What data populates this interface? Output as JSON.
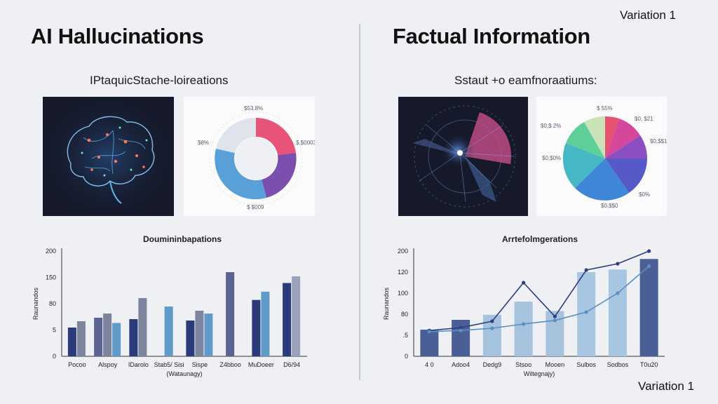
{
  "left": {
    "title": "AI  Hallucinations",
    "subtitle": "IPtaquicStache-loireations",
    "donut_labels": [
      "$53.8%",
      "$8%",
      "$.$0003",
      "$ $009"
    ],
    "chart_title": "Doumininbapations"
  },
  "right": {
    "title": "Factual Information",
    "subtitle": "Sstaut +o eamfnoraatiums:",
    "pie_labels": [
      "$ 55%",
      "$0,$ 2%",
      "$0, $21",
      "$0,$$1",
      "$0,$0%",
      "$0%",
      "$0,$$0"
    ],
    "chart_title": "Arrtefolmgerations"
  },
  "variation_top": "Variation 1",
  "variation_bottom": "Variation 1",
  "chart_data": [
    {
      "type": "bar",
      "title": "Doumininbapations",
      "ylabel": "Raunandos",
      "xlabel": "(Wataunagy)",
      "yticks": [
        "0",
        "5",
        "80",
        "150",
        "200"
      ],
      "ytick_positions": [
        0,
        5,
        80,
        150,
        200
      ],
      "categories": [
        "Pocoo",
        "Alspoy",
        "IDarolo",
        "Stab5/ Sisi",
        "Sispe",
        "Z4bboo",
        "MuDoeer",
        "D6/94"
      ],
      "series": [
        {
          "color": "#2b3a7a",
          "values": [
            12,
            0,
            36,
            0,
            32,
            0,
            90,
            135
          ]
        },
        {
          "color": "#5a6391",
          "values": [
            0,
            40,
            0,
            0,
            0,
            160,
            0,
            0
          ]
        },
        {
          "color": "#7d859e",
          "values": [
            30,
            52,
            95,
            0,
            60,
            0,
            0,
            0
          ]
        },
        {
          "color": "#5f9ac8",
          "values": [
            0,
            25,
            0,
            72,
            52,
            0,
            112,
            0
          ]
        },
        {
          "color": "#9aa1b8",
          "values": [
            0,
            0,
            0,
            0,
            0,
            0,
            0,
            152
          ]
        }
      ],
      "ylim": [
        0,
        220
      ]
    },
    {
      "type": "bar",
      "title": "Arrtefolmgerations",
      "ylabel": "Raunandos",
      "xlabel": "Wiltegnajy)",
      "yticks": [
        "0",
        ".5",
        "80",
        "100",
        "120",
        "200"
      ],
      "ytick_positions": [
        0,
        5,
        80,
        100,
        120,
        200
      ],
      "categories": [
        "4 0",
        "Adoo4",
        "Dedg9",
        "Stsoo",
        "Mooen",
        "Sulbos",
        "Sodbos",
        "T0u20"
      ],
      "bar_values": [
        25,
        60,
        78,
        92,
        83,
        120,
        130,
        170
      ],
      "bar_colors": [
        "#4a5f96",
        "#4a5f96",
        "#a5c3df",
        "#a7c2dc",
        "#a7c2dc",
        "#a7c6e2",
        "#a7c6e2",
        "#4a5f96"
      ],
      "lines": [
        {
          "color": "#2e3f7e",
          "values": [
            22,
            32,
            55,
            110,
            72,
            128,
            152,
            200
          ]
        },
        {
          "color": "#5a8fc1",
          "values": [
            18,
            22,
            30,
            45,
            58,
            82,
            100,
            143
          ]
        }
      ],
      "ylim": [
        0,
        205
      ]
    }
  ]
}
